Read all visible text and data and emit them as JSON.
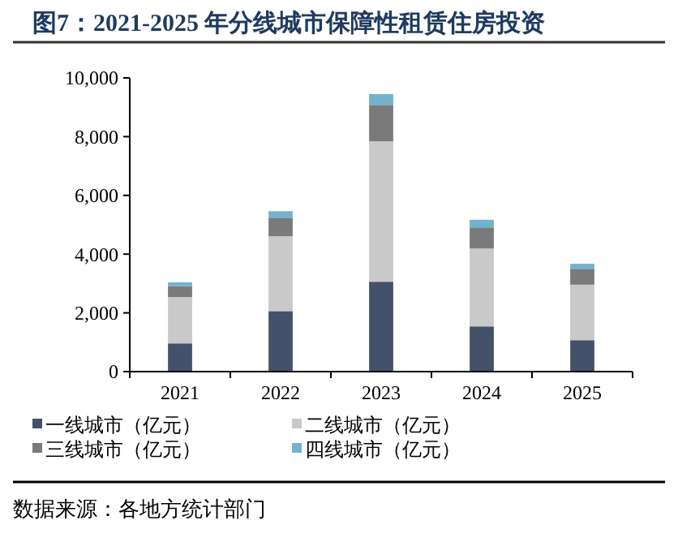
{
  "chart_data": {
    "type": "bar",
    "stacked": true,
    "title": "图7：2021-2025 年分线城市保障性租赁住房投资",
    "categories": [
      "2021",
      "2022",
      "2023",
      "2024",
      "2025"
    ],
    "series": [
      {
        "name": "一线城市（亿元）",
        "color": "#44516a",
        "values": [
          960,
          2060,
          3060,
          1540,
          1070
        ]
      },
      {
        "name": "二线城市（亿元）",
        "color": "#c9c9c9",
        "values": [
          1580,
          2550,
          4780,
          2650,
          1890
        ]
      },
      {
        "name": "三线城市（亿元）",
        "color": "#7a7a7a",
        "values": [
          370,
          630,
          1240,
          720,
          540
        ]
      },
      {
        "name": "四线城市（亿元）",
        "color": "#72b2cf",
        "values": [
          130,
          220,
          370,
          260,
          170
        ]
      }
    ],
    "ylim": [
      0,
      10000
    ],
    "yticks": [
      {
        "value": 0,
        "label": "0"
      },
      {
        "value": 2000,
        "label": "2,000"
      },
      {
        "value": 4000,
        "label": "4,000"
      },
      {
        "value": 6000,
        "label": "6,000"
      },
      {
        "value": 8000,
        "label": "8,000"
      },
      {
        "value": 10000,
        "label": "10,000"
      }
    ],
    "grid": false,
    "legend": "bottom",
    "annotations": [
      "数据来源：各地方统计部门"
    ]
  }
}
